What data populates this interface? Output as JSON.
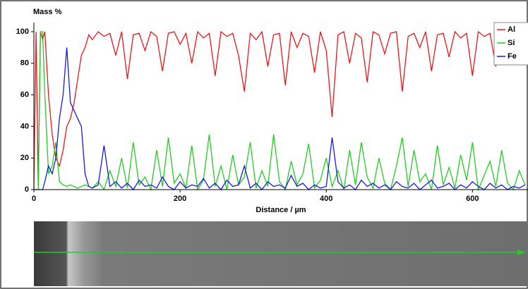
{
  "chart_data": {
    "type": "line",
    "title": "Mass %",
    "x_label": "Distance / µm",
    "x": [
      0,
      3,
      6,
      9,
      12,
      15,
      20,
      25,
      30,
      35,
      40,
      45,
      50,
      55,
      60,
      65,
      70,
      75,
      80,
      88,
      96,
      104,
      112,
      120,
      128,
      136,
      144,
      152,
      160,
      168,
      176,
      184,
      192,
      200,
      208,
      216,
      224,
      232,
      240,
      248,
      256,
      264,
      272,
      280,
      288,
      296,
      304,
      312,
      320,
      328,
      336,
      344,
      352,
      360,
      368,
      376,
      384,
      392,
      400,
      408,
      416,
      424,
      432,
      440,
      448,
      456,
      464,
      472,
      480,
      488,
      496,
      504,
      512,
      520,
      528,
      536,
      544,
      552,
      560,
      568,
      576,
      584,
      592,
      600,
      608,
      616,
      624,
      632,
      640,
      648,
      656,
      664,
      672
    ],
    "series": [
      {
        "name": "Al",
        "color": "#e8161b",
        "values": [
          0,
          100,
          2,
          100,
          95,
          100,
          60,
          35,
          20,
          15,
          25,
          40,
          45,
          55,
          70,
          85,
          90,
          98,
          95,
          100,
          97,
          99,
          85,
          100,
          70,
          98,
          99,
          88,
          100,
          97,
          75,
          99,
          100,
          92,
          99,
          80,
          100,
          96,
          99,
          72,
          100,
          97,
          99,
          85,
          62,
          99,
          95,
          100,
          78,
          98,
          99,
          66,
          100,
          90,
          99,
          97,
          74,
          100,
          88,
          46,
          98,
          100,
          80,
          99,
          96,
          68,
          100,
          98,
          86,
          99,
          100,
          62,
          97,
          99,
          90,
          100,
          75,
          98,
          99,
          84,
          100,
          96,
          99,
          72,
          100,
          97,
          99,
          78,
          100,
          98,
          99,
          96,
          100
        ]
      },
      {
        "name": "Si",
        "color": "#22cc22",
        "values": [
          0,
          0,
          0,
          100,
          100,
          60,
          10,
          15,
          30,
          5,
          3,
          2,
          3,
          2,
          1,
          2,
          3,
          2,
          1,
          5,
          0,
          12,
          2,
          20,
          1,
          30,
          3,
          8,
          0,
          25,
          2,
          33,
          4,
          10,
          1,
          28,
          0,
          6,
          35,
          2,
          15,
          0,
          22,
          3,
          8,
          30,
          1,
          12,
          2,
          35,
          5,
          0,
          18,
          3,
          10,
          29,
          1,
          6,
          20,
          2,
          12,
          0,
          25,
          3,
          30,
          8,
          1,
          20,
          4,
          0,
          15,
          33,
          2,
          25,
          5,
          10,
          0,
          28,
          3,
          14,
          1,
          22,
          6,
          30,
          0,
          9,
          18,
          2,
          25,
          4,
          0,
          12,
          3
        ]
      },
      {
        "name": "Fe",
        "color": "#1a1adb",
        "values": [
          0,
          0,
          0,
          0,
          0,
          5,
          15,
          10,
          20,
          45,
          60,
          90,
          55,
          50,
          45,
          40,
          10,
          2,
          1,
          3,
          28,
          2,
          5,
          1,
          4,
          0,
          6,
          2,
          3,
          1,
          8,
          2,
          0,
          5,
          1,
          3,
          2,
          7,
          1,
          4,
          0,
          6,
          2,
          3,
          15,
          1,
          4,
          0,
          5,
          2,
          3,
          1,
          9,
          2,
          4,
          0,
          3,
          1,
          2,
          33,
          5,
          1,
          3,
          0,
          6,
          2,
          4,
          1,
          3,
          0,
          5,
          2,
          1,
          4,
          0,
          3,
          6,
          1,
          2,
          4,
          0,
          3,
          1,
          5,
          2,
          0,
          4,
          1,
          3,
          0,
          2,
          1,
          3
        ]
      }
    ],
    "xlim": [
      0,
      676
    ],
    "ylim": [
      0,
      104
    ],
    "xticks": [
      0,
      200,
      400,
      600
    ],
    "yticks": [
      0,
      20,
      40,
      60,
      80,
      100
    ]
  }
}
